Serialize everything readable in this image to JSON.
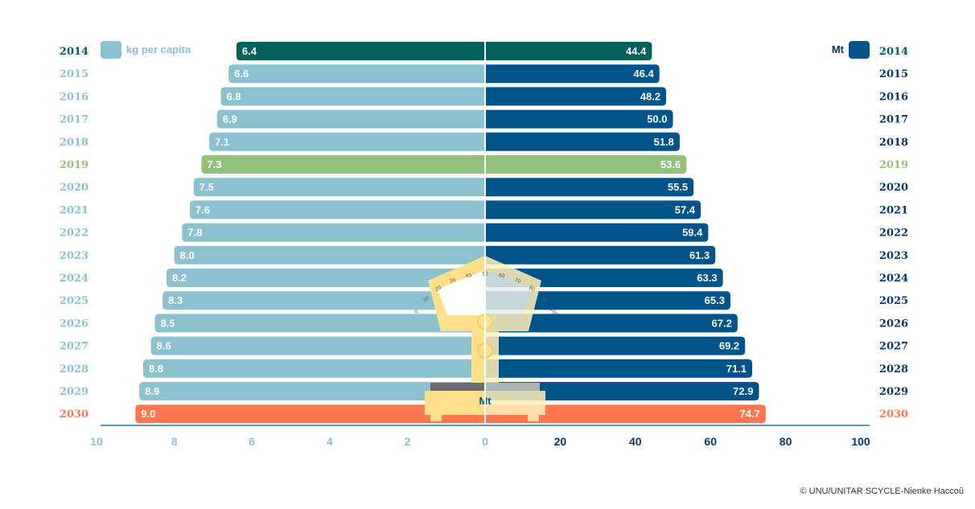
{
  "chart_data": {
    "type": "bar",
    "orientation": "horizontal-butterfly",
    "categories": [
      "2014",
      "2015",
      "2016",
      "2017",
      "2018",
      "2019",
      "2020",
      "2021",
      "2022",
      "2023",
      "2024",
      "2025",
      "2026",
      "2027",
      "2028",
      "2029",
      "2030"
    ],
    "series": [
      {
        "name": "kg per capita",
        "side": "left",
        "values": [
          6.4,
          6.6,
          6.8,
          6.9,
          7.1,
          7.3,
          7.5,
          7.6,
          7.8,
          8.0,
          8.2,
          8.3,
          8.5,
          8.6,
          8.8,
          8.9,
          9.0
        ],
        "labels": [
          "6.4",
          "6.6",
          "6.8",
          "6.9",
          "7.1",
          "7.3",
          "7.5",
          "7.6",
          "7.8",
          "8.0",
          "8.2",
          "8.3",
          "8.5",
          "8.6",
          "8.8",
          "8.9",
          "9.0"
        ],
        "xlim": [
          10,
          0
        ],
        "ticks": [
          "10",
          "8",
          "6",
          "4",
          "2",
          "0"
        ]
      },
      {
        "name": "Mt",
        "side": "right",
        "values": [
          44.4,
          46.4,
          48.2,
          50.0,
          51.8,
          53.6,
          55.5,
          57.4,
          59.4,
          61.3,
          63.3,
          65.3,
          67.2,
          69.2,
          71.1,
          72.9,
          74.7
        ],
        "labels": [
          "44.4",
          "46.4",
          "48.2",
          "50.0",
          "51.8",
          "53.6",
          "55.5",
          "57.4",
          "59.4",
          "61.3",
          "63.3",
          "65.3",
          "67.2",
          "69.2",
          "71.1",
          "72.9",
          "74.7"
        ],
        "xlim": [
          0,
          100
        ],
        "ticks": [
          "20",
          "40",
          "60",
          "80",
          "100"
        ]
      }
    ],
    "highlights": {
      "2014": "#03615c",
      "2019": "#93c17b",
      "2030": "#fe7750"
    },
    "colors": {
      "left": "#8cc2cf",
      "right": "#01548a",
      "left_text": "#8cc2cf",
      "right_text": "#05376b",
      "axis": "#01548a"
    },
    "grid": false,
    "legend": "top"
  },
  "scale": {
    "label": "Mt",
    "dial": [
      "0",
      "10",
      "20",
      "30",
      "40",
      "50",
      "60",
      "70",
      "80",
      "90",
      "100"
    ]
  },
  "credit": "© UNU/UNITAR SCYCLE-Nienke Haccoû"
}
